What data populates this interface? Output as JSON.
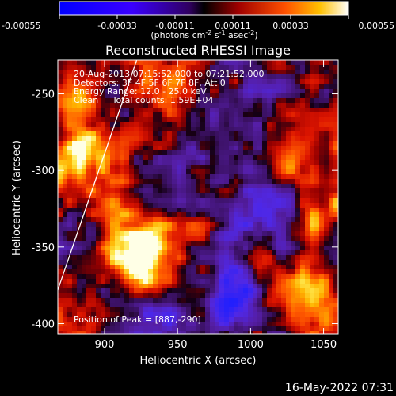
{
  "colorbar": {
    "ticks": [
      "-0.00055",
      "-0.00033",
      "-0.00011",
      "0.00011",
      "0.00033",
      "0.00055"
    ],
    "range": [
      -0.00055,
      0.00055
    ],
    "unit_main": "(photons cm",
    "unit_sup1": "-2",
    "unit_mid1": " s",
    "unit_sup2": "-1",
    "unit_mid2": " asec",
    "unit_sup3": "-2",
    "unit_end": ")"
  },
  "chart_data": {
    "type": "heatmap",
    "title": "Reconstructed RHESSI Image",
    "xlabel": "Heliocentric X (arcsec)",
    "ylabel": "Heliocentric Y (arcsec)",
    "xlim": [
      868,
      1060
    ],
    "ylim": [
      -407,
      -228
    ],
    "x_ticks": [
      900,
      950,
      1000,
      1050
    ],
    "y_ticks": [
      -250,
      -300,
      -350,
      -400
    ],
    "x_tick_labels": [
      "900",
      "950",
      "1000",
      "1050"
    ],
    "y_tick_labels": [
      "-250",
      "-300",
      "-350",
      "-400"
    ],
    "peak_position": [
      887,
      -290
    ],
    "bright_regions": [
      {
        "x": 884,
        "y": -293,
        "intensity": 1.0
      },
      {
        "x": 880,
        "y": -250,
        "intensity": 0.7
      },
      {
        "x": 922,
        "y": -362,
        "intensity": 0.95
      },
      {
        "x": 930,
        "y": -343,
        "intensity": 0.75
      },
      {
        "x": 1035,
        "y": -283,
        "intensity": 0.65
      },
      {
        "x": 1022,
        "y": -372,
        "intensity": 0.7
      },
      {
        "x": 1048,
        "y": -395,
        "intensity": 0.6
      },
      {
        "x": 1045,
        "y": -322,
        "intensity": 0.55
      },
      {
        "x": 945,
        "y": -250,
        "intensity": 0.45
      },
      {
        "x": 905,
        "y": -320,
        "intensity": 0.55
      }
    ],
    "dim_regions": [
      {
        "x": 990,
        "y": -380,
        "intensity": -0.6
      },
      {
        "x": 965,
        "y": -290,
        "intensity": -0.5
      },
      {
        "x": 1000,
        "y": -330,
        "intensity": -0.45
      },
      {
        "x": 940,
        "y": -395,
        "intensity": -0.4
      }
    ],
    "limb_line": [
      [
        868,
        -378
      ],
      [
        922,
        -228
      ]
    ],
    "grid": false
  },
  "info": {
    "time": "20-Aug-2013 07:15:52.000 to 07:21:52.000",
    "detectors": "Detectors: 3F 4F 5F 6F 7F 8F, Att 0",
    "energy": "Energy Range: 12.0 - 25.0 keV",
    "clean": "Clean     Total counts: 1.59E+04",
    "peak": "Position of Peak = [887,-290]"
  },
  "footer": {
    "timestamp": "16-May-2022 07:31"
  }
}
